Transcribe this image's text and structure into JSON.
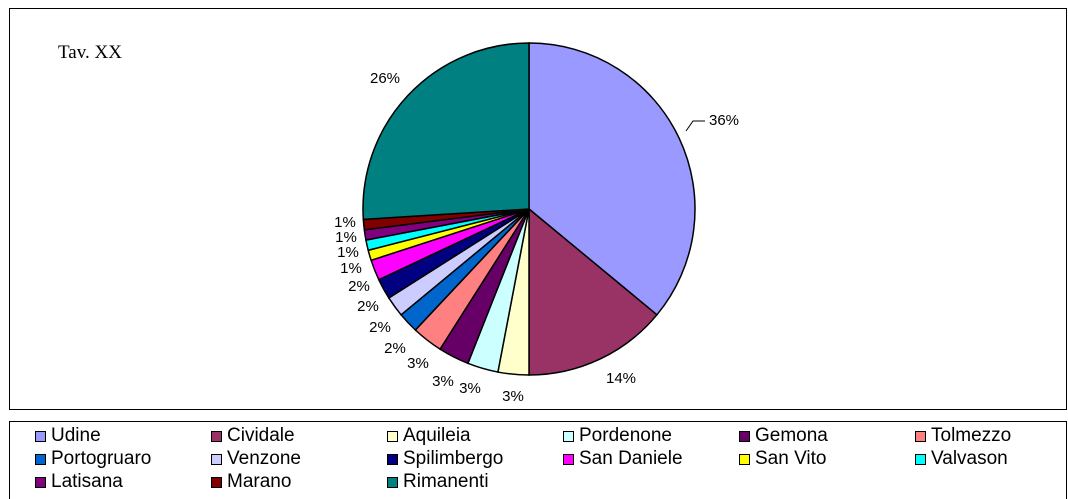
{
  "chart_data": {
    "type": "pie",
    "title": "Tav. XX",
    "slices": [
      {
        "name": "Udine",
        "value": 36,
        "label": "36%",
        "color": "#9999ff"
      },
      {
        "name": "Cividale",
        "value": 14,
        "label": "14%",
        "color": "#993366"
      },
      {
        "name": "Aquileia",
        "value": 3,
        "label": "3%",
        "color": "#ffffcc"
      },
      {
        "name": "Pordenone",
        "value": 3,
        "label": "3%",
        "color": "#ccffff"
      },
      {
        "name": "Gemona",
        "value": 3,
        "label": "3%",
        "color": "#660066"
      },
      {
        "name": "Tolmezzo",
        "value": 3,
        "label": "3%",
        "color": "#ff8080"
      },
      {
        "name": "Portogruaro",
        "value": 2,
        "label": "2%",
        "color": "#0066cc"
      },
      {
        "name": "Venzone",
        "value": 2,
        "label": "2%",
        "color": "#ccccff"
      },
      {
        "name": "Spilimbergo",
        "value": 2,
        "label": "2%",
        "color": "#000080"
      },
      {
        "name": "San Daniele",
        "value": 2,
        "label": "2%",
        "color": "#ff00ff"
      },
      {
        "name": "San Vito",
        "value": 1,
        "label": "1%",
        "color": "#ffff00"
      },
      {
        "name": "Valvason",
        "value": 1,
        "label": "1%",
        "color": "#00ffff"
      },
      {
        "name": "Latisana",
        "value": 1,
        "label": "1%",
        "color": "#800080"
      },
      {
        "name": "Marano",
        "value": 1,
        "label": "1%",
        "color": "#800000"
      },
      {
        "name": "Rimanenti",
        "value": 26,
        "label": "26%",
        "color": "#008080"
      }
    ],
    "legend_position": "bottom"
  }
}
